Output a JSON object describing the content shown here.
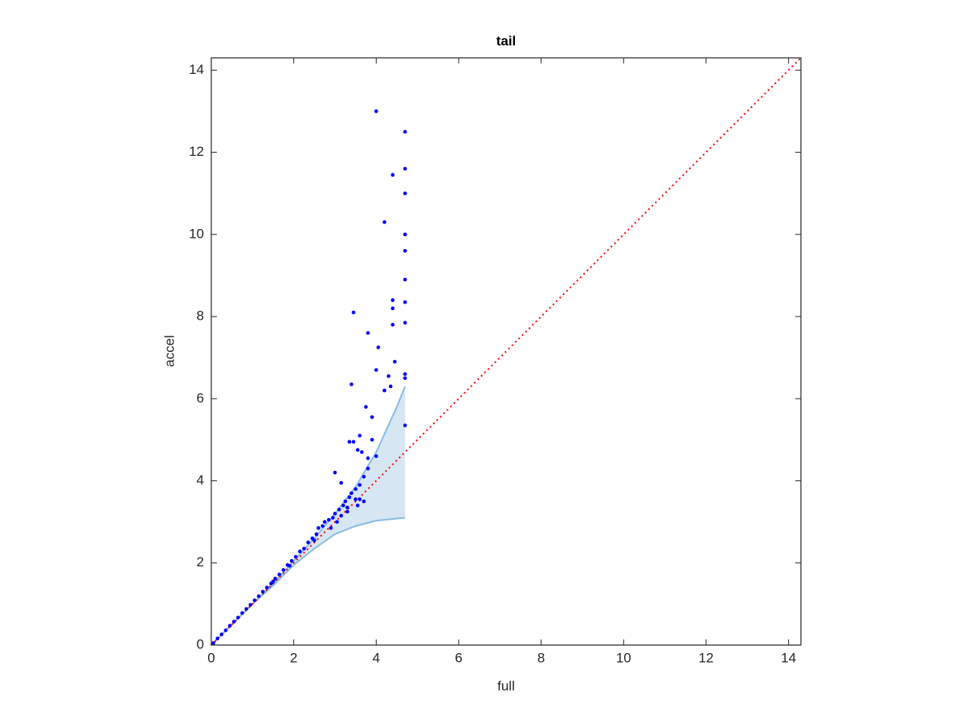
{
  "chart_data": {
    "type": "scatter",
    "title": "tail",
    "xlabel": "full",
    "ylabel": "accel",
    "xlim": [
      0,
      14.3
    ],
    "ylim": [
      0,
      14.3
    ],
    "xticks": [
      0,
      2,
      4,
      6,
      8,
      10,
      12,
      14
    ],
    "yticks": [
      0,
      2,
      4,
      6,
      8,
      10,
      12,
      14
    ],
    "grid": false,
    "points": {
      "color": "#0000ff",
      "x": [
        4.0,
        4.7,
        4.7,
        4.4,
        4.7,
        4.2,
        4.7,
        4.7,
        4.7,
        4.4,
        4.7,
        4.4,
        3.45,
        4.4,
        4.7,
        3.8,
        4.05,
        4.45,
        4.0,
        4.3,
        4.7,
        4.7,
        4.2,
        4.35,
        3.4,
        3.75,
        3.9,
        4.7,
        3.9,
        3.6,
        3.45,
        3.35,
        3.55,
        3.8,
        3.65,
        4.0,
        3.0,
        3.15,
        3.7,
        3.6,
        3.5,
        0.05,
        0.15,
        0.25,
        0.35,
        0.45,
        0.55,
        0.65,
        0.75,
        0.85,
        0.95,
        1.05,
        1.15,
        1.25,
        1.35,
        1.45,
        1.55,
        1.65,
        1.75,
        1.85,
        1.95,
        2.05,
        2.15,
        2.25,
        2.35,
        2.45,
        2.55,
        2.6,
        2.7,
        2.75,
        2.85,
        2.9,
        2.95,
        3.0,
        3.05,
        3.1,
        3.15,
        3.2,
        3.25,
        3.3,
        3.35,
        3.4,
        3.5,
        3.55,
        3.6,
        3.7,
        3.8,
        3.3,
        2.5,
        1.9,
        1.5
      ],
      "y": [
        13.0,
        12.5,
        11.6,
        11.45,
        11.0,
        10.3,
        10.0,
        9.6,
        8.9,
        8.4,
        8.35,
        8.2,
        8.1,
        7.8,
        7.85,
        7.6,
        7.25,
        6.9,
        6.7,
        6.55,
        6.6,
        6.5,
        6.2,
        6.3,
        6.35,
        5.8,
        5.55,
        5.35,
        5.0,
        5.1,
        4.95,
        4.95,
        4.75,
        4.55,
        4.7,
        4.6,
        4.2,
        3.95,
        3.5,
        3.55,
        3.55,
        0.05,
        0.16,
        0.26,
        0.36,
        0.47,
        0.57,
        0.67,
        0.78,
        0.88,
        0.98,
        1.09,
        1.19,
        1.3,
        1.4,
        1.5,
        1.62,
        1.72,
        1.83,
        1.95,
        2.05,
        2.15,
        2.28,
        2.35,
        2.5,
        2.6,
        2.7,
        2.85,
        2.9,
        3.0,
        3.05,
        2.85,
        3.1,
        3.2,
        3.0,
        3.3,
        3.15,
        3.4,
        3.5,
        3.35,
        3.6,
        3.7,
        3.8,
        3.4,
        3.9,
        4.1,
        4.3,
        3.25,
        2.55,
        1.93,
        1.55
      ]
    },
    "band": {
      "color": "#d6e6f3",
      "edge_color": "#88bde3",
      "x": [
        0,
        0.5,
        1,
        1.5,
        2,
        2.5,
        3,
        3.5,
        4,
        4.5,
        4.7
      ],
      "upper": [
        0,
        0.5,
        1,
        1.5,
        2.05,
        2.6,
        3.2,
        3.85,
        4.7,
        5.8,
        6.3
      ],
      "lower": [
        0,
        0.5,
        1,
        1.45,
        1.95,
        2.35,
        2.7,
        2.9,
        3.03,
        3.08,
        3.1
      ]
    },
    "line": {
      "color": "#ff0000",
      "x": [
        0,
        14.3
      ],
      "y": [
        0,
        14.3
      ]
    }
  }
}
